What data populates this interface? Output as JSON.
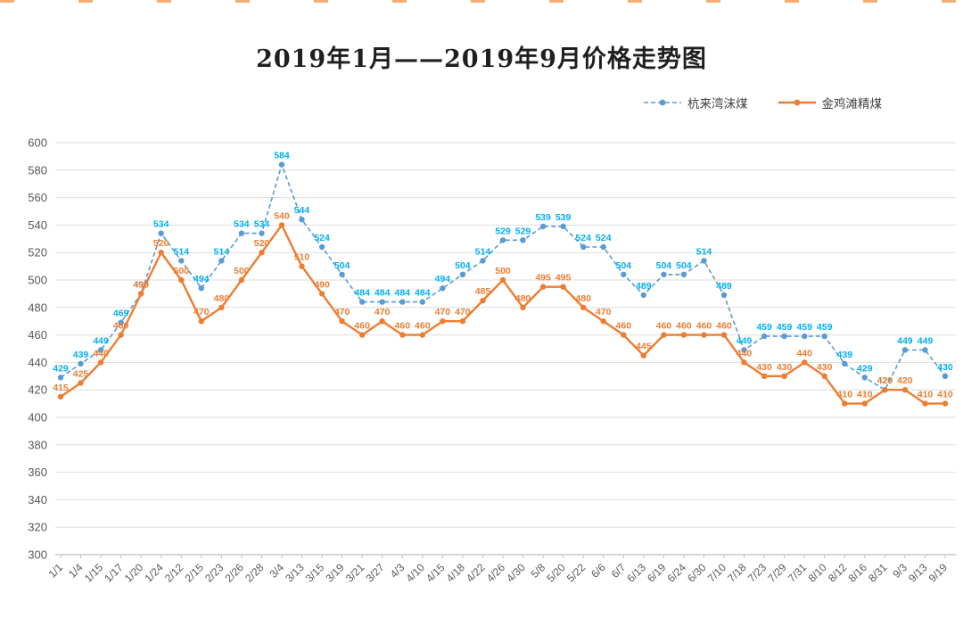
{
  "chart_data": {
    "type": "line",
    "title": "2019年1月——2019年9月价格走势图",
    "categories": [
      "1/1",
      "1/4",
      "1/15",
      "1/17",
      "1/20",
      "1/24",
      "2/12",
      "2/15",
      "2/23",
      "2/26",
      "2/28",
      "3/4",
      "3/13",
      "3/15",
      "3/19",
      "3/21",
      "3/27",
      "4/3",
      "4/10",
      "4/15",
      "4/18",
      "4/22",
      "4/26",
      "4/30",
      "5/8",
      "5/20",
      "5/22",
      "6/6",
      "6/7",
      "6/13",
      "6/19",
      "6/24",
      "6/30",
      "7/10",
      "7/18",
      "7/23",
      "7/29",
      "7/31",
      "8/10",
      "8/12",
      "8/16",
      "8/31",
      "9/3",
      "9/13",
      "9/19"
    ],
    "series": [
      {
        "name": "杭来湾沫煤",
        "style": "dashed",
        "color": "#5B9BD5",
        "label_color": "#00B0F0",
        "values": [
          429,
          439,
          449,
          469,
          490,
          534,
          514,
          494,
          514,
          534,
          534,
          584,
          544,
          524,
          504,
          484,
          484,
          484,
          484,
          494,
          504,
          514,
          529,
          529,
          539,
          539,
          524,
          524,
          504,
          489,
          504,
          504,
          514,
          489,
          449,
          459,
          459,
          459,
          459,
          439,
          429,
          420,
          449,
          449,
          430
        ]
      },
      {
        "name": "金鸡滩精煤",
        "style": "solid",
        "color": "#ED7D31",
        "label_color": "#ED7D31",
        "values": [
          415,
          425,
          440,
          460,
          490,
          520,
          500,
          470,
          480,
          500,
          520,
          540,
          510,
          490,
          470,
          460,
          470,
          460,
          460,
          470,
          470,
          485,
          500,
          480,
          495,
          495,
          480,
          470,
          460,
          445,
          460,
          460,
          460,
          460,
          440,
          430,
          430,
          440,
          430,
          410,
          410,
          420,
          420,
          410,
          410
        ]
      }
    ],
    "ylim": [
      300,
      600
    ],
    "yticks": [
      300,
      320,
      340,
      360,
      380,
      400,
      420,
      440,
      460,
      480,
      500,
      520,
      540,
      560,
      580,
      600
    ],
    "ytick_step": 20,
    "grid": "horizontal",
    "data_labels": true,
    "legend_position": "top-right",
    "xlabel": "",
    "ylabel": ""
  }
}
